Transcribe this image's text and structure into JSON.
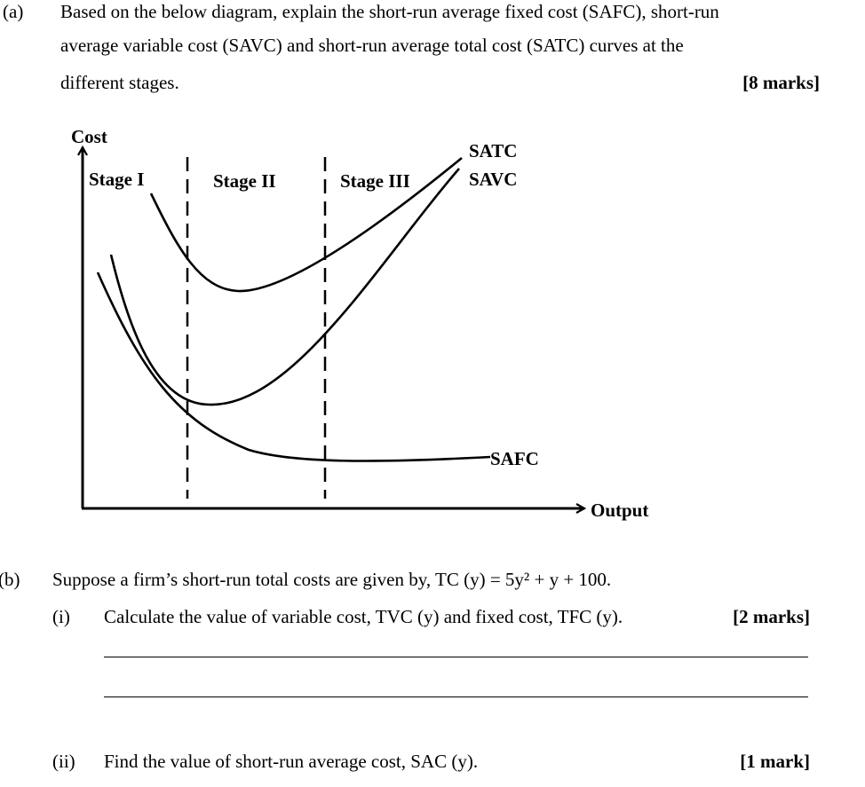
{
  "part_a": {
    "label": "(a)",
    "line1": "Based on the below diagram, explain the short-run average fixed cost (SAFC), short-run",
    "line2": "average variable cost (SAVC) and short-run average total cost (SATC) curves at the",
    "line3": "different stages.",
    "marks": "[8 marks]"
  },
  "diagram": {
    "y_axis_label": "Cost",
    "x_axis_label": "Output",
    "stages": [
      "Stage I",
      "Stage II",
      "Stage III"
    ],
    "curves": [
      "SATC",
      "SAVC",
      "SAFC"
    ]
  },
  "part_b": {
    "label": "(b)",
    "text": "Suppose a firm’s short-run total costs are given by, TC (y) = 5y² + y + 100.",
    "sub_i": {
      "label": "(i)",
      "text": "Calculate the value of variable cost, TVC (y) and fixed cost, TFC (y).",
      "marks": "[2 marks]"
    },
    "sub_ii": {
      "label": "(ii)",
      "text": "Find the value of short-run average cost, SAC (y).",
      "marks": "[1 mark]"
    }
  }
}
